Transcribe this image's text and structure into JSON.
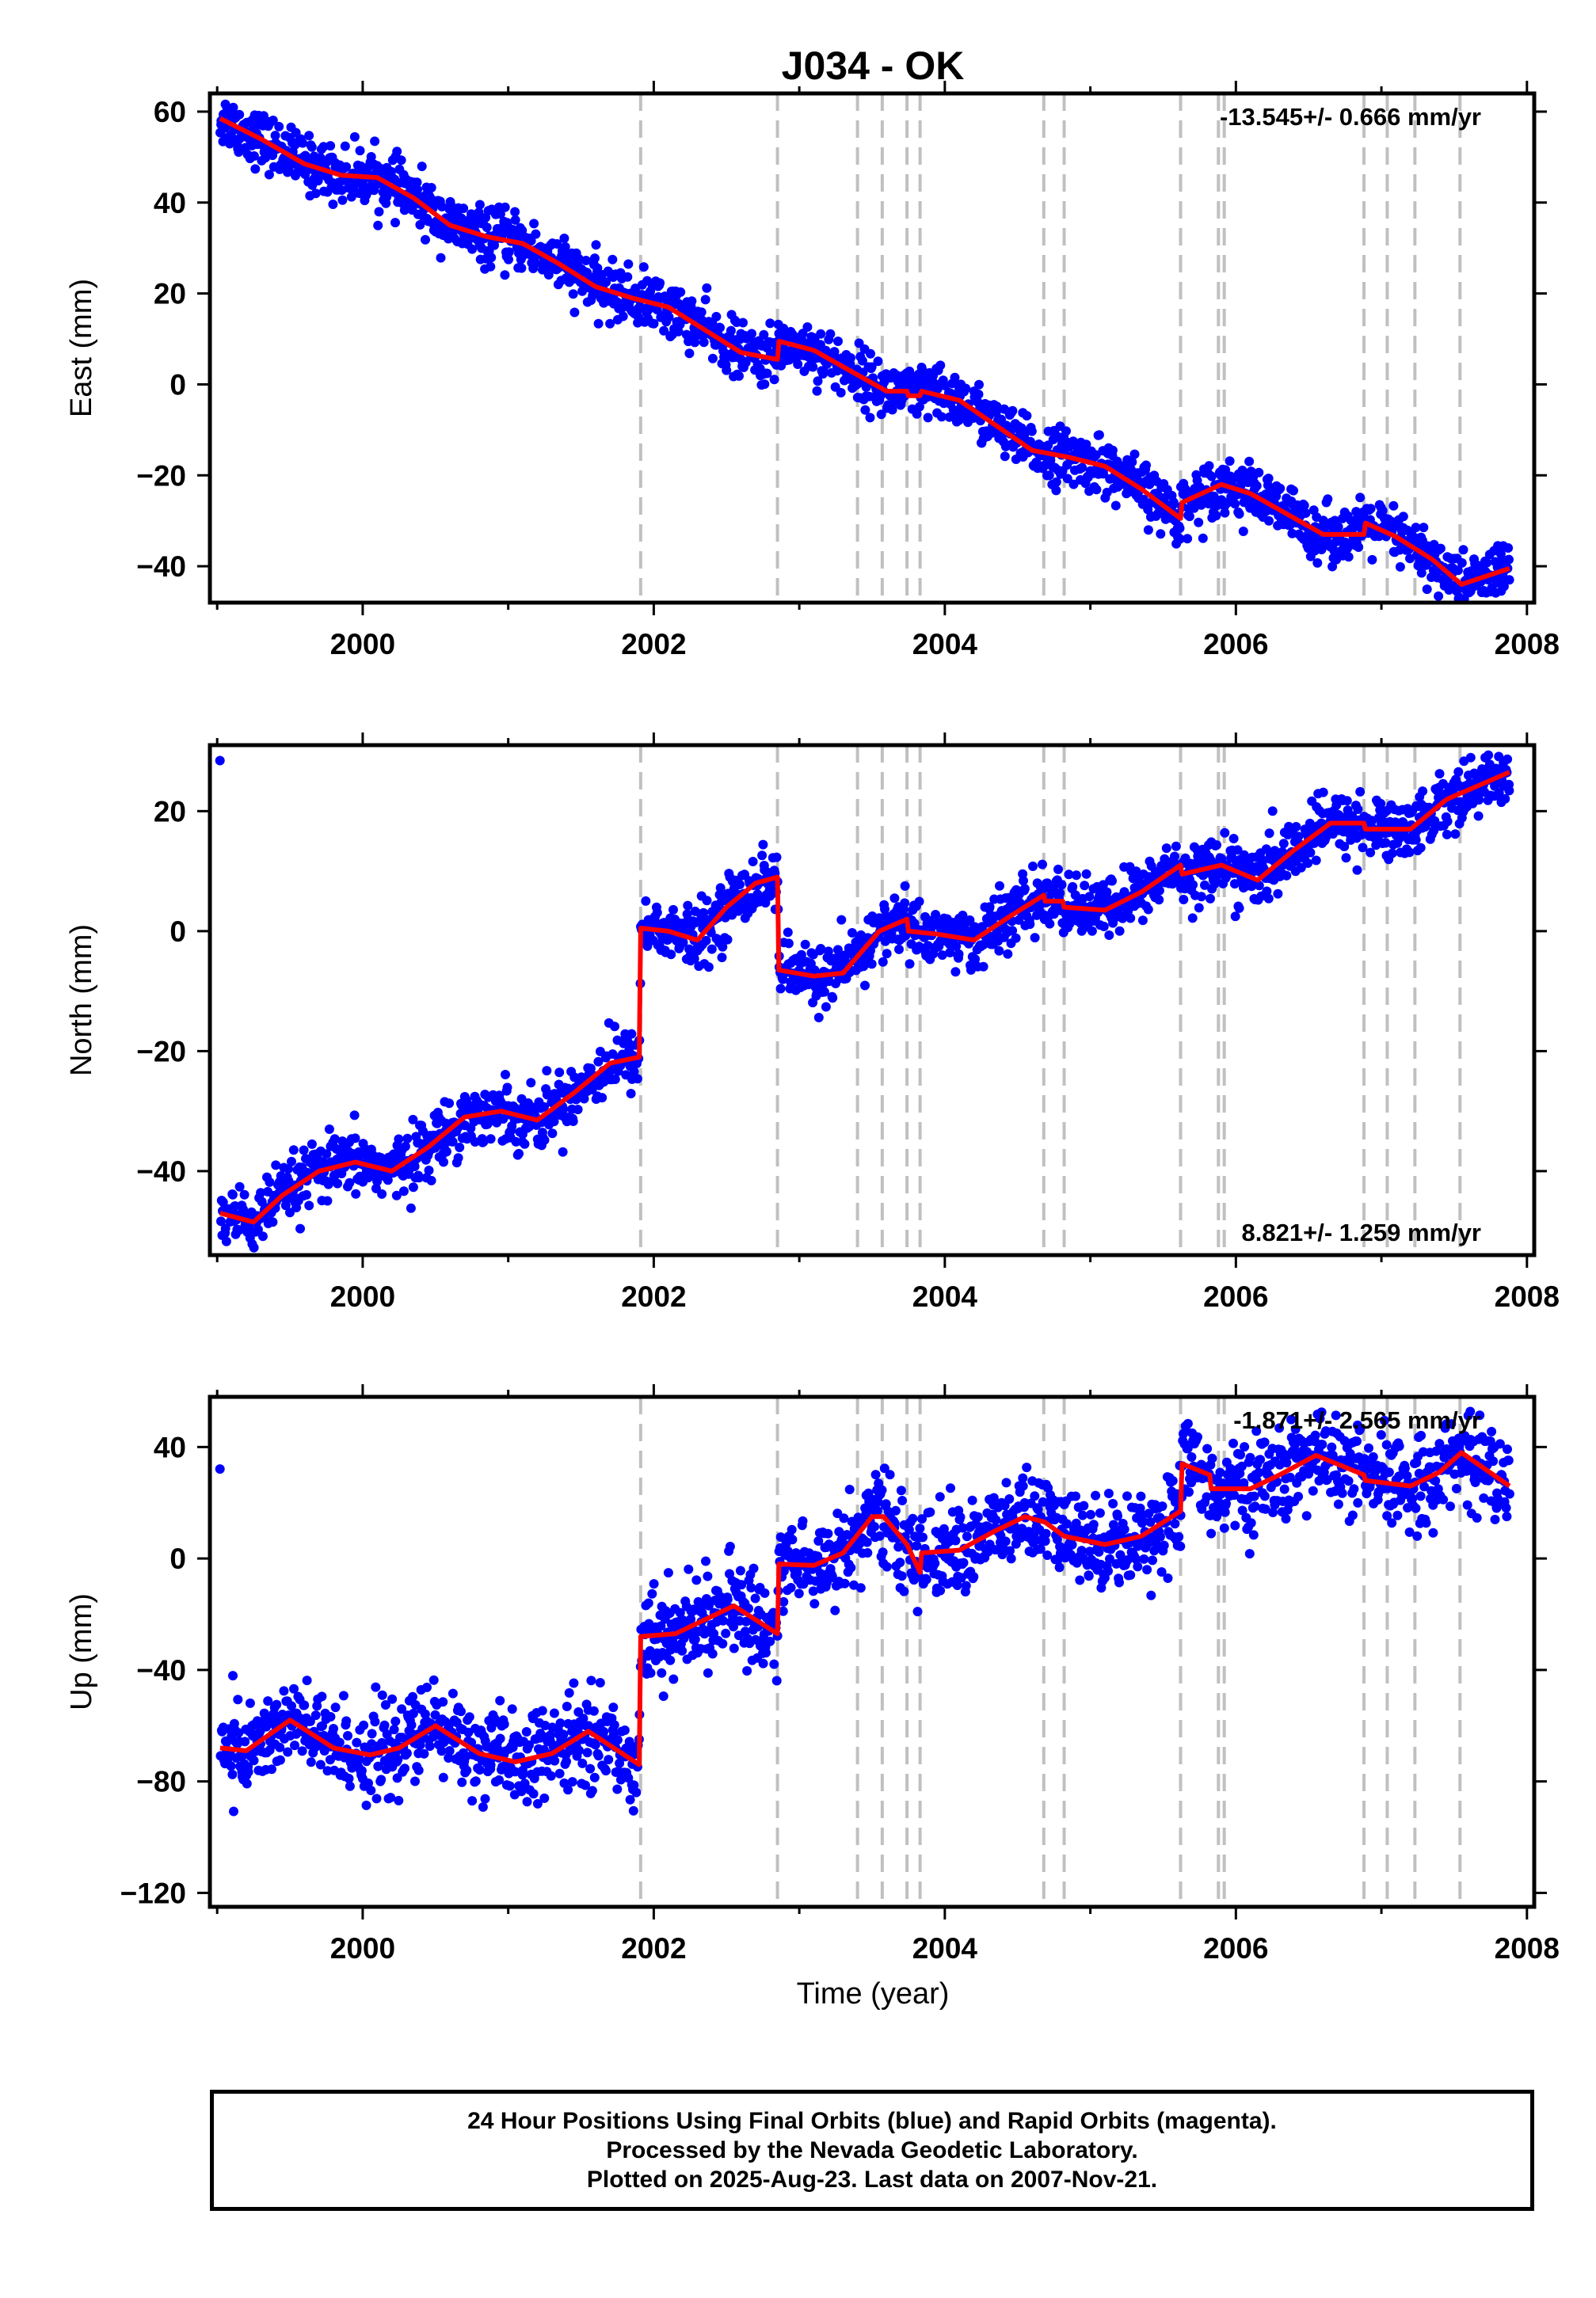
{
  "figure": {
    "title": "J034 - OK",
    "xlabel": "Time (year)",
    "caption": [
      "24 Hour Positions Using Final Orbits (blue) and Rapid Orbits (magenta).",
      "Processed by the Nevada Geodetic Laboratory.",
      "Plotted on 2025-Aug-23. Last data on 2007-Nov-21."
    ],
    "colors": {
      "final_orbit_points": "#0000ff",
      "model_fit": "#ff0000",
      "event_lines": "#c0c0c0",
      "frame": "#000000"
    }
  },
  "chart_data": [
    {
      "type": "scatter",
      "name": "east",
      "ylabel": "East (mm)",
      "rate_label": "-13.545+/- 0.666 mm/yr",
      "rate_label_position": "top-right",
      "xlim": [
        1998.95,
        2008.05
      ],
      "ylim": [
        -48,
        64
      ],
      "xticks": [
        2000,
        2002,
        2004,
        2006,
        2008
      ],
      "yticks": [
        60,
        40,
        20,
        0,
        -20,
        -40
      ],
      "ytick_labels": [
        "60",
        "40",
        "20",
        "0",
        "−20",
        "−40"
      ],
      "model_fit_points": [
        [
          1999.02,
          58.5
        ],
        [
          1999.3,
          54.0
        ],
        [
          1999.6,
          48.5
        ],
        [
          1999.85,
          46.0
        ],
        [
          2000.1,
          45.5
        ],
        [
          2000.35,
          41.0
        ],
        [
          2000.6,
          35.0
        ],
        [
          2000.85,
          32.5
        ],
        [
          2001.1,
          31.0
        ],
        [
          2001.35,
          26.5
        ],
        [
          2001.6,
          21.5
        ],
        [
          2001.85,
          19.0
        ],
        [
          2002.1,
          17.0
        ],
        [
          2002.35,
          12.0
        ],
        [
          2002.6,
          7.0
        ],
        [
          2002.85,
          5.5
        ],
        [
          2002.86,
          9.5
        ],
        [
          2003.1,
          7.5
        ],
        [
          2003.35,
          3.0
        ],
        [
          2003.6,
          -1.5
        ],
        [
          2003.74,
          -1.5
        ],
        [
          2003.75,
          -2.5
        ],
        [
          2003.83,
          -2.5
        ],
        [
          2003.84,
          -1.5
        ],
        [
          2004.1,
          -3.5
        ],
        [
          2004.35,
          -9.0
        ],
        [
          2004.6,
          -14.5
        ],
        [
          2004.85,
          -16.0
        ],
        [
          2005.1,
          -18.0
        ],
        [
          2005.35,
          -23.0
        ],
        [
          2005.62,
          -29.5
        ],
        [
          2005.63,
          -26.0
        ],
        [
          2005.9,
          -22.0
        ],
        [
          2006.1,
          -24.0
        ],
        [
          2006.35,
          -28.5
        ],
        [
          2006.6,
          -33.0
        ],
        [
          2006.88,
          -33.0
        ],
        [
          2006.89,
          -30.5
        ],
        [
          2007.1,
          -33.5
        ],
        [
          2007.35,
          -38.5
        ],
        [
          2007.55,
          -44.0
        ],
        [
          2007.88,
          -40.5
        ]
      ],
      "scatter_spread_mm": 3.0
    },
    {
      "type": "scatter",
      "name": "north",
      "ylabel": "North (mm)",
      "rate_label": "8.821+/- 1.259 mm/yr",
      "rate_label_position": "bottom-right",
      "xlim": [
        1998.95,
        2008.05
      ],
      "ylim": [
        -54,
        31
      ],
      "xticks": [
        2000,
        2002,
        2004,
        2006,
        2008
      ],
      "yticks": [
        20,
        0,
        -20,
        -40
      ],
      "ytick_labels": [
        "20",
        "0",
        "−20",
        "−40"
      ],
      "model_fit_points": [
        [
          1999.02,
          -47.0
        ],
        [
          1999.25,
          -48.5
        ],
        [
          1999.45,
          -44.0
        ],
        [
          1999.7,
          -40.0
        ],
        [
          1999.95,
          -38.5
        ],
        [
          2000.2,
          -40.0
        ],
        [
          2000.45,
          -36.0
        ],
        [
          2000.7,
          -31.0
        ],
        [
          2000.95,
          -30.0
        ],
        [
          2001.2,
          -31.5
        ],
        [
          2001.45,
          -27.0
        ],
        [
          2001.7,
          -22.0
        ],
        [
          2001.9,
          -21.0
        ],
        [
          2001.91,
          0.5
        ],
        [
          2002.1,
          0.0
        ],
        [
          2002.3,
          -1.5
        ],
        [
          2002.5,
          4.0
        ],
        [
          2002.7,
          8.0
        ],
        [
          2002.85,
          9.0
        ],
        [
          2002.86,
          -6.5
        ],
        [
          2003.1,
          -7.5
        ],
        [
          2003.3,
          -7.0
        ],
        [
          2003.55,
          0.0
        ],
        [
          2003.74,
          2.0
        ],
        [
          2003.75,
          0.0
        ],
        [
          2003.95,
          -0.5
        ],
        [
          2004.2,
          -1.5
        ],
        [
          2004.45,
          2.5
        ],
        [
          2004.68,
          6.0
        ],
        [
          2004.69,
          5.0
        ],
        [
          2004.81,
          5.0
        ],
        [
          2004.82,
          4.0
        ],
        [
          2005.1,
          3.5
        ],
        [
          2005.35,
          6.5
        ],
        [
          2005.62,
          11.0
        ],
        [
          2005.63,
          9.5
        ],
        [
          2005.9,
          11.0
        ],
        [
          2006.15,
          8.5
        ],
        [
          2006.4,
          13.5
        ],
        [
          2006.65,
          18.0
        ],
        [
          2006.88,
          18.0
        ],
        [
          2006.89,
          17.0
        ],
        [
          2007.2,
          17.0
        ],
        [
          2007.45,
          22.0
        ],
        [
          2007.88,
          26.5
        ]
      ],
      "scatter_spread_mm": 2.5
    },
    {
      "type": "scatter",
      "name": "up",
      "ylabel": "Up (mm)",
      "rate_label": "-1.871+/- 2.565 mm/yr",
      "rate_label_position": "top-right",
      "xlim": [
        1998.95,
        2008.05
      ],
      "ylim": [
        -125,
        58
      ],
      "xticks": [
        2000,
        2002,
        2004,
        2006,
        2008
      ],
      "yticks": [
        40,
        0,
        -40,
        -80,
        -120
      ],
      "ytick_labels": [
        "40",
        "0",
        "−40",
        "−80",
        "−120"
      ],
      "model_fit_points": [
        [
          1999.02,
          -68.0
        ],
        [
          1999.2,
          -69.0
        ],
        [
          1999.5,
          -58.0
        ],
        [
          1999.8,
          -68.0
        ],
        [
          2000.05,
          -70.5
        ],
        [
          2000.25,
          -68.0
        ],
        [
          2000.5,
          -60.0
        ],
        [
          2000.8,
          -70.0
        ],
        [
          2001.05,
          -73.0
        ],
        [
          2001.3,
          -70.0
        ],
        [
          2001.55,
          -62.0
        ],
        [
          2001.9,
          -74.0
        ],
        [
          2001.91,
          -28.0
        ],
        [
          2002.15,
          -27.0
        ],
        [
          2002.35,
          -22.0
        ],
        [
          2002.55,
          -17.0
        ],
        [
          2002.85,
          -27.0
        ],
        [
          2002.86,
          -2.0
        ],
        [
          2003.1,
          -2.5
        ],
        [
          2003.3,
          2.0
        ],
        [
          2003.5,
          15.0
        ],
        [
          2003.58,
          15.0
        ],
        [
          2003.74,
          5.0
        ],
        [
          2003.83,
          -5.0
        ],
        [
          2003.84,
          2.0
        ],
        [
          2004.1,
          3.0
        ],
        [
          2004.35,
          10.0
        ],
        [
          2004.55,
          15.0
        ],
        [
          2004.69,
          13.0
        ],
        [
          2004.82,
          8.0
        ],
        [
          2005.1,
          5.0
        ],
        [
          2005.35,
          8.0
        ],
        [
          2005.62,
          17.0
        ],
        [
          2005.63,
          34.0
        ],
        [
          2005.82,
          30.0
        ],
        [
          2005.83,
          25.0
        ],
        [
          2006.1,
          25.0
        ],
        [
          2006.3,
          30.0
        ],
        [
          2006.55,
          37.0
        ],
        [
          2006.88,
          30.0
        ],
        [
          2006.89,
          28.0
        ],
        [
          2007.2,
          26.0
        ],
        [
          2007.4,
          31.0
        ],
        [
          2007.55,
          38.0
        ],
        [
          2007.88,
          26.0
        ]
      ],
      "scatter_spread_mm": 8.0
    }
  ],
  "event_lines_x": [
    2001.91,
    2002.85,
    2003.4,
    2003.57,
    2003.74,
    2003.83,
    2004.68,
    2004.82,
    2005.62,
    2005.88,
    2005.92,
    2006.88,
    2007.04,
    2007.23,
    2007.54
  ]
}
